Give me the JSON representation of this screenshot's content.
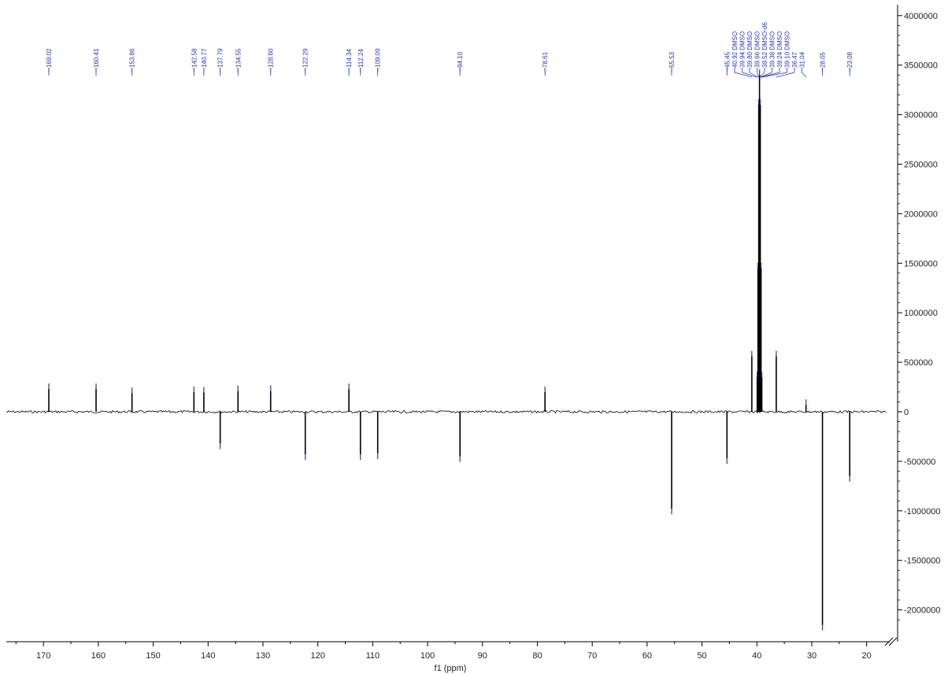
{
  "chart_data": {
    "type": "line",
    "title": "",
    "xlabel": "f1 (ppm)",
    "ylabel": "",
    "x_reversed": true,
    "xlim": [
      176,
      15
    ],
    "ylim": [
      -2200000,
      4000000
    ],
    "x_ticks": [
      170,
      160,
      150,
      140,
      130,
      120,
      110,
      100,
      90,
      80,
      70,
      60,
      50,
      40,
      30,
      20
    ],
    "y_ticks": [
      4000000,
      3500000,
      3000000,
      2500000,
      2000000,
      1500000,
      1000000,
      500000,
      0,
      -500000,
      -1000000,
      -1500000,
      -2000000
    ],
    "y_tick_labels": [
      "4000000",
      "3500000",
      "3000000",
      "2500000",
      "2000000",
      "1500000",
      "1000000",
      "500000",
      "0",
      "-500000",
      "-1000000",
      "-1500000",
      "-2000000"
    ],
    "axis_break": "x-axis right end",
    "colors": {
      "spectrum": "#000000",
      "peak_label": "#2233cc",
      "axis": "#000000"
    },
    "peaks": [
      {
        "ppm": 169.02,
        "intensity": 230000,
        "label": "169.02"
      },
      {
        "ppm": 160.41,
        "intensity": 230000,
        "label": "160.41"
      },
      {
        "ppm": 153.86,
        "intensity": 190000,
        "label": "153.86"
      },
      {
        "ppm": 142.58,
        "intensity": 200000,
        "label": "142.58"
      },
      {
        "ppm": 140.77,
        "intensity": 195000,
        "label": "140.77"
      },
      {
        "ppm": 137.79,
        "intensity": -320000,
        "label": "137.79"
      },
      {
        "ppm": 134.55,
        "intensity": 210000,
        "label": "134.55"
      },
      {
        "ppm": 128.6,
        "intensity": 210000,
        "label": "128.60"
      },
      {
        "ppm": 122.29,
        "intensity": -430000,
        "label": "122.29"
      },
      {
        "ppm": 114.34,
        "intensity": 230000,
        "label": "114.34"
      },
      {
        "ppm": 112.24,
        "intensity": -430000,
        "label": "112.24"
      },
      {
        "ppm": 109.09,
        "intensity": -420000,
        "label": "109.09"
      },
      {
        "ppm": 94.1,
        "intensity": -450000,
        "label": "94.10"
      },
      {
        "ppm": 78.61,
        "intensity": 200000,
        "label": "78.61"
      },
      {
        "ppm": 55.53,
        "intensity": -980000,
        "label": "55.53"
      },
      {
        "ppm": 45.45,
        "intensity": -470000,
        "label": "45.45"
      },
      {
        "ppm": 40.92,
        "intensity": 560000,
        "label": "40.92 DMSO"
      },
      {
        "ppm": 39.94,
        "intensity": 350000,
        "label": "39.94 DMSO"
      },
      {
        "ppm": 39.8,
        "intensity": 1450000,
        "label": "39.80 DMSO"
      },
      {
        "ppm": 39.66,
        "intensity": 3100000,
        "label": "39.66 DMSO"
      },
      {
        "ppm": 39.52,
        "intensity": 3400000,
        "label": "39.52 DMSO-d6"
      },
      {
        "ppm": 39.38,
        "intensity": 3100000,
        "label": "39.38 DMSO"
      },
      {
        "ppm": 39.24,
        "intensity": 1450000,
        "label": "39.24 DMSO"
      },
      {
        "ppm": 39.1,
        "intensity": 350000,
        "label": "39.10 DMSO"
      },
      {
        "ppm": 36.47,
        "intensity": 560000,
        "label": "36.47"
      },
      {
        "ppm": 31.04,
        "intensity": 70000,
        "label": "31.04"
      },
      {
        "ppm": 28.05,
        "intensity": -2150000,
        "label": "28.05"
      },
      {
        "ppm": 23.08,
        "intensity": -650000,
        "label": "23.08"
      }
    ]
  }
}
